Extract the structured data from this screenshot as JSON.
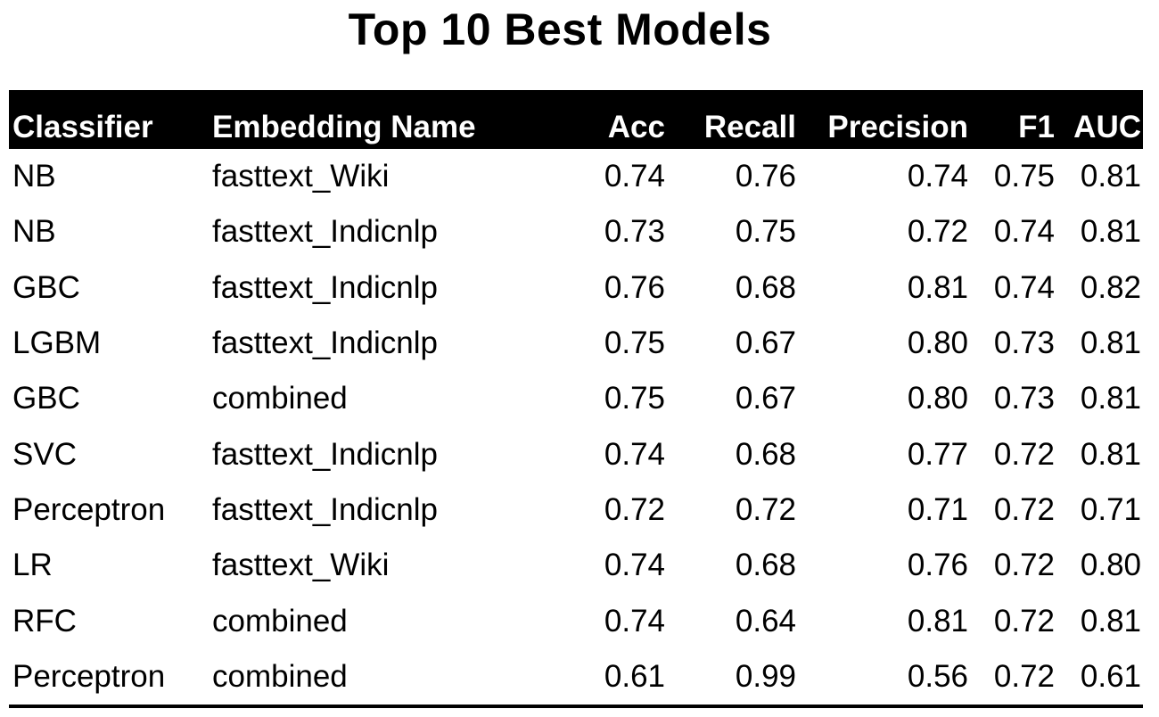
{
  "chart_data": {
    "type": "table",
    "title": "Top 10 Best Models",
    "columns": [
      "Classifier",
      "Embedding Name",
      "Acc",
      "Recall",
      "Precision",
      "F1",
      "AUC"
    ],
    "rows": [
      [
        "NB",
        "fasttext_Wiki",
        "0.74",
        "0.76",
        "0.74",
        "0.75",
        "0.81"
      ],
      [
        "NB",
        "fasttext_Indicnlp",
        "0.73",
        "0.75",
        "0.72",
        "0.74",
        "0.81"
      ],
      [
        "GBC",
        "fasttext_Indicnlp",
        "0.76",
        "0.68",
        "0.81",
        "0.74",
        "0.82"
      ],
      [
        "LGBM",
        "fasttext_Indicnlp",
        "0.75",
        "0.67",
        "0.80",
        "0.73",
        "0.81"
      ],
      [
        "GBC",
        "combined",
        "0.75",
        "0.67",
        "0.80",
        "0.73",
        "0.81"
      ],
      [
        "SVC",
        "fasttext_Indicnlp",
        "0.74",
        "0.68",
        "0.77",
        "0.72",
        "0.81"
      ],
      [
        "Perceptron",
        "fasttext_Indicnlp",
        "0.72",
        "0.72",
        "0.71",
        "0.72",
        "0.71"
      ],
      [
        "LR",
        "fasttext_Wiki",
        "0.74",
        "0.68",
        "0.76",
        "0.72",
        "0.80"
      ],
      [
        "RFC",
        "combined",
        "0.74",
        "0.64",
        "0.81",
        "0.72",
        "0.81"
      ],
      [
        "Perceptron",
        "combined",
        "0.61",
        "0.99",
        "0.56",
        "0.72",
        "0.61"
      ]
    ]
  },
  "colors": {
    "header_background": "#000000",
    "header_text": "#ffffff",
    "body_text": "#000000"
  }
}
